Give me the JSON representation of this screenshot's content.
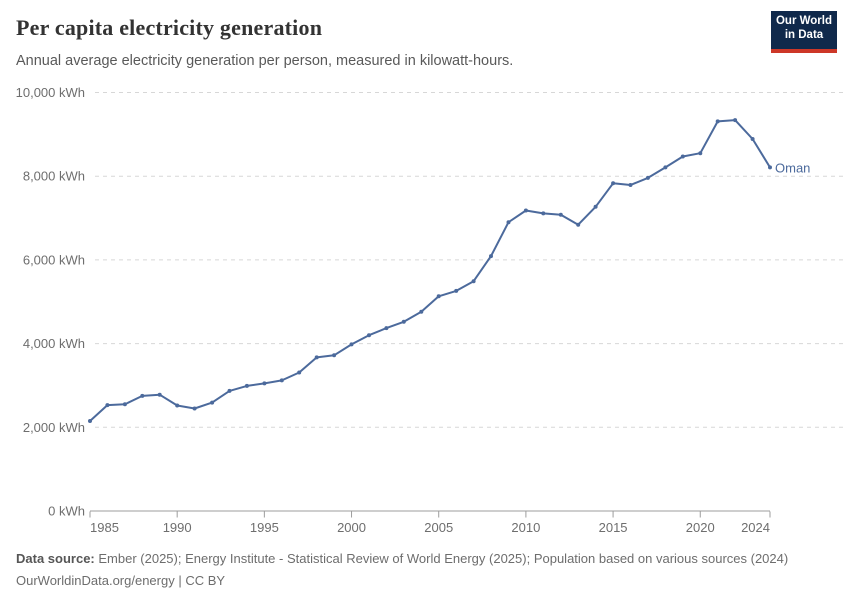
{
  "chart_data": {
    "type": "line",
    "title": "Per capita electricity generation",
    "subtitle": "Annual average electricity generation per person, measured in kilowatt-hours.",
    "xlabel": "",
    "ylabel": "kWh",
    "xlim": [
      1985,
      2024
    ],
    "ylim": [
      0,
      10000
    ],
    "grid": "horizontal-dashed",
    "legend_position": "end-of-line",
    "x": [
      1985,
      1986,
      1987,
      1988,
      1989,
      1990,
      1991,
      1992,
      1993,
      1994,
      1995,
      1996,
      1997,
      1998,
      1999,
      2000,
      2001,
      2002,
      2003,
      2004,
      2005,
      2006,
      2007,
      2008,
      2009,
      2010,
      2011,
      2012,
      2013,
      2014,
      2015,
      2016,
      2017,
      2018,
      2019,
      2020,
      2021,
      2022,
      2023,
      2024
    ],
    "series": [
      {
        "name": "Oman",
        "color": "#4C6A9C",
        "values": [
          2150,
          2530,
          2550,
          2750,
          2780,
          2520,
          2450,
          2590,
          2870,
          2990,
          3050,
          3120,
          3310,
          3670,
          3720,
          3980,
          4200,
          4370,
          4520,
          4760,
          5130,
          5260,
          5490,
          6090,
          6900,
          7180,
          7110,
          7080,
          6840,
          7270,
          7830,
          7790,
          7960,
          8210,
          8470,
          8550,
          9310,
          9340,
          8890,
          8210
        ]
      }
    ],
    "x_ticks": [
      1985,
      1990,
      1995,
      2000,
      2005,
      2010,
      2015,
      2020,
      2024
    ],
    "y_ticks": [
      {
        "v": 0,
        "label": "0 kWh"
      },
      {
        "v": 2000,
        "label": "2,000 kWh"
      },
      {
        "v": 4000,
        "label": "4,000 kWh"
      },
      {
        "v": 6000,
        "label": "6,000 kWh"
      },
      {
        "v": 8000,
        "label": "8,000 kWh"
      },
      {
        "v": 10000,
        "label": "10,000 kWh"
      }
    ],
    "end_label": "Oman"
  },
  "logo": {
    "line1": "Our World",
    "line2": "in Data"
  },
  "footer": {
    "source_label": "Data source:",
    "source_text": "Ember (2025); Energy Institute - Statistical Review of World Energy (2025); Population based on various sources (2024)",
    "link_line": "OurWorldinData.org/energy | CC BY"
  },
  "colors": {
    "line": "#4C6A9C",
    "end_label": "#4C6A9C",
    "grid": "#d7d7d7",
    "axis": "#9c9c9c",
    "tick_text": "#6e6e6e",
    "title_text": "#333333",
    "subtitle_text": "#595959",
    "logo_bg": "#10294B",
    "logo_accent": "#CD3728"
  }
}
